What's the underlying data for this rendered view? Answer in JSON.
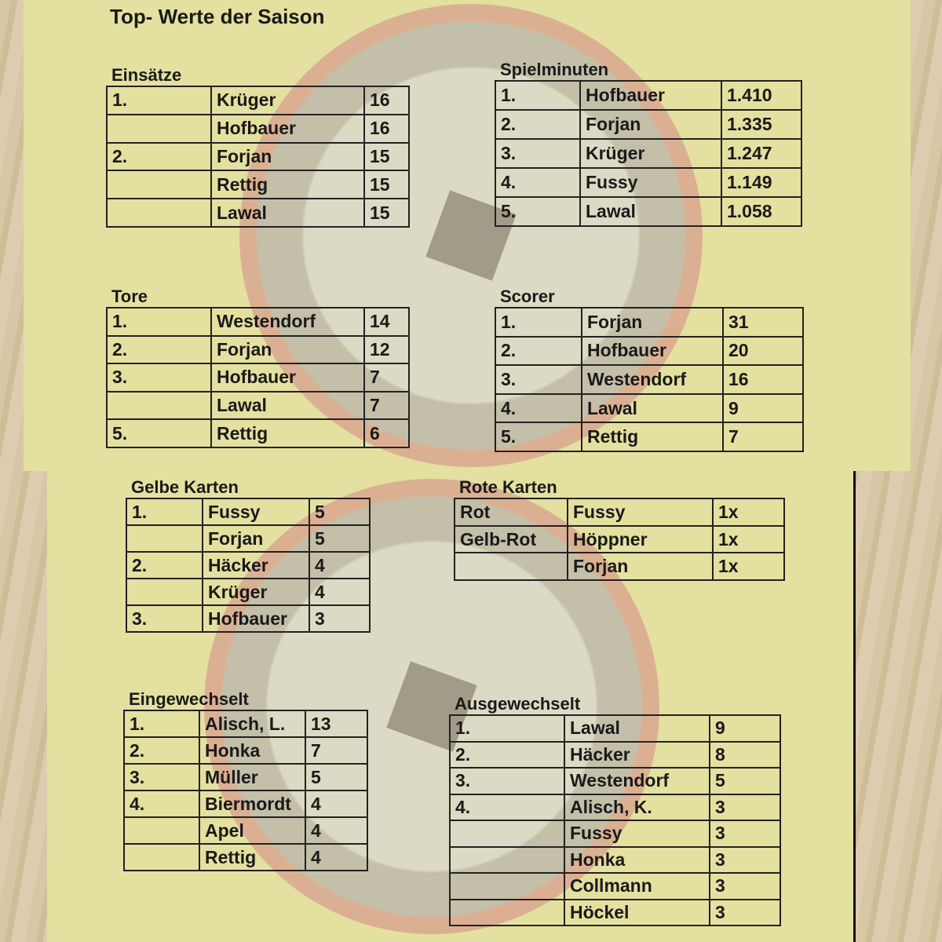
{
  "title": "Top- Werte der Saison",
  "sections": [
    {
      "id": "einsaetze",
      "label": "Einsätze",
      "rows": [
        [
          "1.",
          "Krüger",
          "16"
        ],
        [
          "",
          "Hofbauer",
          "16"
        ],
        [
          "2.",
          "Forjan",
          "15"
        ],
        [
          "",
          "Rettig",
          "15"
        ],
        [
          "",
          "Lawal",
          "15"
        ]
      ]
    },
    {
      "id": "spielminuten",
      "label": "Spielminuten",
      "rows": [
        [
          "1.",
          "Hofbauer",
          "1.410"
        ],
        [
          "2.",
          "Forjan",
          "1.335"
        ],
        [
          "3.",
          "Krüger",
          "1.247"
        ],
        [
          "4.",
          "Fussy",
          "1.149"
        ],
        [
          "5.",
          "Lawal",
          "1.058"
        ]
      ]
    },
    {
      "id": "tore",
      "label": "Tore",
      "rows": [
        [
          "1.",
          "Westendorf",
          "14"
        ],
        [
          "2.",
          "Forjan",
          "12"
        ],
        [
          "3.",
          "Hofbauer",
          "7"
        ],
        [
          "",
          "Lawal",
          "7"
        ],
        [
          "5.",
          "Rettig",
          "6"
        ]
      ]
    },
    {
      "id": "scorer",
      "label": "Scorer",
      "rows": [
        [
          "1.",
          "Forjan",
          "31"
        ],
        [
          "2.",
          "Hofbauer",
          "20"
        ],
        [
          "3.",
          "Westendorf",
          "16"
        ],
        [
          "4.",
          "Lawal",
          "9"
        ],
        [
          "5.",
          "Rettig",
          "7"
        ]
      ]
    },
    {
      "id": "gelbe-karten",
      "label": "Gelbe Karten",
      "rows": [
        [
          "1.",
          "Fussy",
          "5"
        ],
        [
          "",
          "Forjan",
          "5"
        ],
        [
          "2.",
          "Häcker",
          "4"
        ],
        [
          "",
          "Krüger",
          "4"
        ],
        [
          "3.",
          "Hofbauer",
          "3"
        ]
      ]
    },
    {
      "id": "rote-karten",
      "label": "Rote Karten",
      "rows": [
        [
          "Rot",
          "Fussy",
          "1x"
        ],
        [
          "Gelb-Rot",
          "Höppner",
          "1x"
        ],
        [
          "",
          "Forjan",
          "1x"
        ]
      ]
    },
    {
      "id": "eingewechselt",
      "label": "Eingewechselt",
      "rows": [
        [
          "1.",
          "Alisch, L.",
          "13"
        ],
        [
          "2.",
          "Honka",
          "7"
        ],
        [
          "3.",
          "Müller",
          "5"
        ],
        [
          "4.",
          "Biermordt",
          "4"
        ],
        [
          "",
          "Apel",
          "4"
        ],
        [
          "",
          "Rettig",
          "4"
        ]
      ]
    },
    {
      "id": "ausgewechselt",
      "label": "Ausgewechselt",
      "rows": [
        [
          "1.",
          "Lawal",
          "9"
        ],
        [
          "2.",
          "Häcker",
          "8"
        ],
        [
          "3.",
          "Westendorf",
          "5"
        ],
        [
          "4.",
          "Alisch, K.",
          "3"
        ],
        [
          "",
          "Fussy",
          "3"
        ],
        [
          "",
          "Honka",
          "3"
        ],
        [
          "",
          "Collmann",
          "3"
        ],
        [
          "",
          "Höckel",
          "3"
        ]
      ]
    }
  ]
}
